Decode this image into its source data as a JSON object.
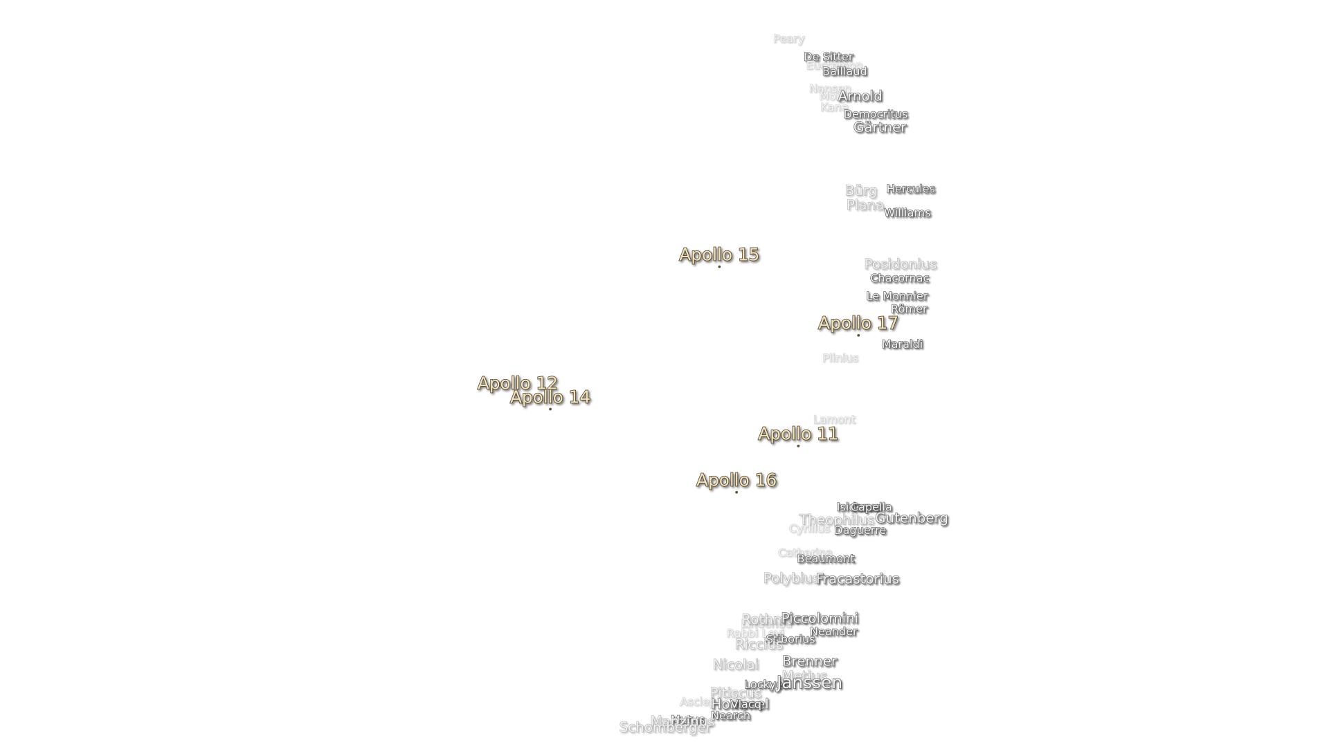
{
  "labels": [
    "Peary",
    "De Sitter",
    "Euctemon",
    "Baillaud",
    "Nansen",
    "Moigno",
    "Arnold",
    "Kane",
    "Democritus",
    "Gärtner",
    "Bürg",
    "Hercules",
    "Plana",
    "Williams",
    "Apollo 15",
    "Posidonius",
    "Chacornac",
    "Le Monnier",
    "Römer",
    "Apollo 17",
    "Maraldi",
    "Plinius",
    "Apollo 12",
    "Apollo 14",
    "Lamont",
    "Apollo 11",
    "Apollo 16",
    "Isidorus",
    "Capella",
    "Theophilus",
    "Gutenberg",
    "Cyrillus",
    "Daguerre",
    "Catharina",
    "Beaumont",
    "Polybius",
    "Fracastorius",
    "Lindenau",
    "Rothmann",
    "Piccolomini",
    "Neander",
    "Rabbi Levi",
    "Stiborius",
    "Riccius",
    "Nicolai",
    "Brenner",
    "Metius",
    "Lockyer",
    "Janssen",
    "Pitiscus",
    "Asclepi",
    "Hommel",
    "Vlacq",
    "Nearch",
    "Mutus",
    "Manzinus",
    "Schomberger"
  ]
}
